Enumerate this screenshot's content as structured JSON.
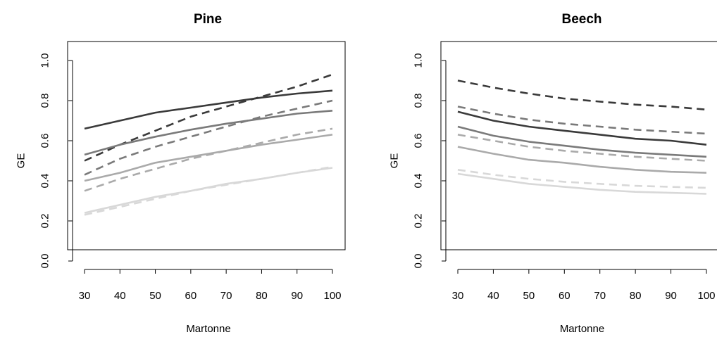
{
  "chart_data": [
    {
      "type": "line",
      "title": "Pine",
      "xlabel": "Martonne",
      "ylabel": "GE",
      "xlim": [
        30,
        100
      ],
      "ylim": [
        0,
        1
      ],
      "xticks": [
        "30",
        "40",
        "50",
        "60",
        "70",
        "80",
        "90",
        "100"
      ],
      "yticks": [
        "0.0",
        "0.2",
        "0.4",
        "0.6",
        "0.8",
        "1.0"
      ],
      "x": [
        30,
        40,
        50,
        60,
        70,
        80,
        90,
        100
      ],
      "series": [
        {
          "color": "#3a3a3a",
          "dash": "solid",
          "values": [
            0.66,
            0.7,
            0.74,
            0.765,
            0.79,
            0.815,
            0.835,
            0.85
          ]
        },
        {
          "color": "#3a3a3a",
          "dash": "dashed",
          "values": [
            0.5,
            0.58,
            0.65,
            0.72,
            0.77,
            0.82,
            0.87,
            0.93
          ]
        },
        {
          "color": "#7a7a7a",
          "dash": "solid",
          "values": [
            0.53,
            0.58,
            0.62,
            0.655,
            0.685,
            0.71,
            0.735,
            0.75
          ]
        },
        {
          "color": "#7a7a7a",
          "dash": "dashed",
          "values": [
            0.43,
            0.51,
            0.57,
            0.62,
            0.67,
            0.72,
            0.76,
            0.8
          ]
        },
        {
          "color": "#aaaaaa",
          "dash": "solid",
          "values": [
            0.4,
            0.44,
            0.49,
            0.52,
            0.55,
            0.58,
            0.605,
            0.63
          ]
        },
        {
          "color": "#aaaaaa",
          "dash": "dashed",
          "values": [
            0.35,
            0.41,
            0.46,
            0.51,
            0.55,
            0.59,
            0.63,
            0.66
          ]
        },
        {
          "color": "#d8d8d8",
          "dash": "solid",
          "values": [
            0.24,
            0.28,
            0.32,
            0.35,
            0.385,
            0.41,
            0.44,
            0.465
          ]
        },
        {
          "color": "#d8d8d8",
          "dash": "dashed",
          "values": [
            0.23,
            0.27,
            0.31,
            0.35,
            0.38,
            0.41,
            0.44,
            0.47
          ]
        }
      ]
    },
    {
      "type": "line",
      "title": "Beech",
      "xlabel": "Martonne",
      "ylabel": "GE",
      "xlim": [
        30,
        100
      ],
      "ylim": [
        0,
        1
      ],
      "xticks": [
        "30",
        "40",
        "50",
        "60",
        "70",
        "80",
        "90",
        "100"
      ],
      "yticks": [
        "0.0",
        "0.2",
        "0.4",
        "0.6",
        "0.8",
        "1.0"
      ],
      "x": [
        30,
        40,
        50,
        60,
        70,
        80,
        90,
        100
      ],
      "series": [
        {
          "color": "#3a3a3a",
          "dash": "dashed",
          "values": [
            0.9,
            0.865,
            0.835,
            0.81,
            0.795,
            0.78,
            0.77,
            0.755
          ]
        },
        {
          "color": "#3a3a3a",
          "dash": "solid",
          "values": [
            0.745,
            0.7,
            0.67,
            0.65,
            0.63,
            0.61,
            0.6,
            0.58
          ]
        },
        {
          "color": "#7a7a7a",
          "dash": "dashed",
          "values": [
            0.77,
            0.735,
            0.705,
            0.685,
            0.67,
            0.655,
            0.645,
            0.635
          ]
        },
        {
          "color": "#7a7a7a",
          "dash": "solid",
          "values": [
            0.67,
            0.625,
            0.595,
            0.575,
            0.555,
            0.54,
            0.53,
            0.52
          ]
        },
        {
          "color": "#aaaaaa",
          "dash": "dashed",
          "values": [
            0.63,
            0.6,
            0.57,
            0.55,
            0.535,
            0.52,
            0.51,
            0.5
          ]
        },
        {
          "color": "#aaaaaa",
          "dash": "solid",
          "values": [
            0.57,
            0.535,
            0.505,
            0.49,
            0.47,
            0.455,
            0.445,
            0.44
          ]
        },
        {
          "color": "#d8d8d8",
          "dash": "dashed",
          "values": [
            0.455,
            0.43,
            0.41,
            0.395,
            0.385,
            0.375,
            0.37,
            0.365
          ]
        },
        {
          "color": "#d8d8d8",
          "dash": "solid",
          "values": [
            0.435,
            0.41,
            0.385,
            0.37,
            0.355,
            0.345,
            0.34,
            0.335
          ]
        }
      ]
    }
  ]
}
